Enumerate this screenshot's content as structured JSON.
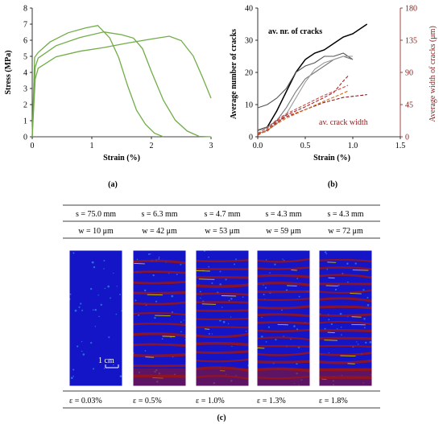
{
  "chart_data": [
    {
      "panel_label": "(a)",
      "type": "line",
      "xlabel": "Strain (%)",
      "ylabel": "Stress (MPa)",
      "xlim": [
        0,
        3
      ],
      "ylim": [
        0,
        8
      ],
      "xticks": [
        "0",
        "1",
        "2",
        "3"
      ],
      "yticks": [
        "0",
        "1",
        "2",
        "3",
        "4",
        "5",
        "6",
        "7",
        "8"
      ],
      "grid": false,
      "series": [
        {
          "color": "#70AD47",
          "x": [
            0,
            0.04,
            0.1,
            0.3,
            0.6,
            0.9,
            1.1,
            1.3,
            1.45,
            1.6,
            1.75,
            1.9,
            2.05,
            2.2
          ],
          "y": [
            0,
            5.0,
            5.3,
            5.9,
            6.4,
            6.7,
            6.9,
            6.2,
            5.0,
            3.2,
            1.6,
            0.7,
            0.2,
            0.0
          ]
        },
        {
          "color": "#70AD47",
          "x": [
            0,
            0.05,
            0.1,
            0.4,
            0.8,
            1.2,
            1.5,
            1.7,
            1.85,
            2.0,
            2.2,
            2.4,
            2.6,
            2.8,
            3.0
          ],
          "y": [
            0,
            4.4,
            4.9,
            5.6,
            6.1,
            6.5,
            6.4,
            6.2,
            5.5,
            4.0,
            2.2,
            1.0,
            0.4,
            0.1,
            0.0
          ]
        },
        {
          "color": "#70AD47",
          "x": [
            0,
            0.05,
            0.1,
            0.4,
            0.8,
            1.2,
            1.6,
            2.0,
            2.3,
            2.5,
            2.7,
            2.85,
            3.0
          ],
          "y": [
            0,
            3.6,
            4.2,
            4.9,
            5.3,
            5.6,
            5.9,
            6.1,
            6.2,
            5.9,
            5.0,
            3.8,
            2.4
          ]
        }
      ]
    },
    {
      "panel_label": "(b)",
      "type": "line",
      "xlabel": "Strain (%)",
      "ylabel": "Average number of cracks",
      "ylabel_right": "Average width of cracks (μm)",
      "xlim": [
        0,
        1.5
      ],
      "ylim": [
        0,
        40
      ],
      "ylim_right": [
        0,
        180
      ],
      "xticks": [
        "0.0",
        "0.5",
        "1.0",
        "1.5"
      ],
      "yticks": [
        "0",
        "10",
        "20",
        "30",
        "40"
      ],
      "yticks_right": [
        "0",
        "45",
        "90",
        "135",
        "180"
      ],
      "annotations": [
        "av. nr. of cracks",
        "av. crack width"
      ],
      "series": [
        {
          "axis": "left",
          "color": "#000000",
          "x": [
            0,
            0.1,
            0.2,
            0.3,
            0.4,
            0.5,
            0.6,
            0.7,
            0.8,
            0.9,
            1.0,
            1.1,
            1.15
          ],
          "y": [
            2,
            3,
            8,
            14,
            20,
            24,
            26,
            27,
            29,
            31,
            32,
            34,
            35
          ]
        },
        {
          "axis": "left",
          "color": "#555555",
          "x": [
            0,
            0.1,
            0.2,
            0.3,
            0.4,
            0.5,
            0.6,
            0.7,
            0.8,
            0.9,
            1.0
          ],
          "y": [
            9,
            10,
            12,
            15,
            20,
            22,
            23,
            25,
            25,
            26,
            24
          ]
        },
        {
          "axis": "left",
          "color": "#777777",
          "x": [
            0,
            0.1,
            0.2,
            0.3,
            0.4,
            0.5,
            0.6,
            0.7,
            0.8,
            0.9,
            1.0
          ],
          "y": [
            2,
            3,
            5,
            9,
            14,
            18,
            20,
            22,
            24,
            25,
            24
          ]
        },
        {
          "axis": "left",
          "color": "#999999",
          "x": [
            0,
            0.1,
            0.2,
            0.3,
            0.4,
            0.5,
            0.6,
            0.7,
            0.8,
            0.9,
            1.0
          ],
          "y": [
            1,
            2,
            4,
            7,
            12,
            17,
            21,
            23,
            24,
            25,
            25
          ]
        },
        {
          "axis": "right",
          "color": "#8B1A1A",
          "x": [
            0,
            0.1,
            0.2,
            0.3,
            0.5,
            0.7,
            0.9,
            1.1,
            1.15
          ],
          "y": [
            4,
            8,
            20,
            28,
            38,
            48,
            55,
            58,
            59
          ]
        },
        {
          "axis": "right",
          "color": "#B22222",
          "x": [
            0,
            0.1,
            0.2,
            0.3,
            0.5,
            0.7,
            0.8,
            0.9,
            0.95
          ],
          "y": [
            2,
            10,
            22,
            30,
            42,
            55,
            62,
            78,
            85
          ]
        },
        {
          "axis": "right",
          "color": "#C0504D",
          "x": [
            0,
            0.1,
            0.2,
            0.3,
            0.5,
            0.7,
            0.85,
            0.95
          ],
          "y": [
            5,
            12,
            24,
            32,
            45,
            58,
            66,
            72
          ]
        },
        {
          "axis": "right",
          "color": "#D2691E",
          "x": [
            0,
            0.1,
            0.2,
            0.3,
            0.5,
            0.7,
            0.85,
            0.95
          ],
          "y": [
            3,
            9,
            18,
            26,
            38,
            50,
            58,
            64
          ]
        }
      ]
    }
  ],
  "panel_c": {
    "label": "(c)",
    "scale_label": "1 cm",
    "columns": [
      {
        "s": "s = 75.0 mm",
        "w": "w = 10 μm",
        "eps": "ε = 0.03%",
        "bands": 0
      },
      {
        "s": "s = 6.3 mm",
        "w": "w = 42 μm",
        "eps": "ε = 0.5%",
        "bands": 12
      },
      {
        "s": "s = 4.7 mm",
        "w": "w = 53 μm",
        "eps": "ε = 1.0%",
        "bands": 15
      },
      {
        "s": "s = 4.3 mm",
        "w": "w = 59 μm",
        "eps": "ε = 1.3%",
        "bands": 16
      },
      {
        "s": "s = 4.3 mm",
        "w": "w = 72 μm",
        "eps": "ε = 1.8%",
        "bands": 16
      }
    ],
    "colors": {
      "background": "#1515C8",
      "crack": "#9B1414",
      "highlight": "#E6E600",
      "speckle": "#36B4E6"
    }
  }
}
